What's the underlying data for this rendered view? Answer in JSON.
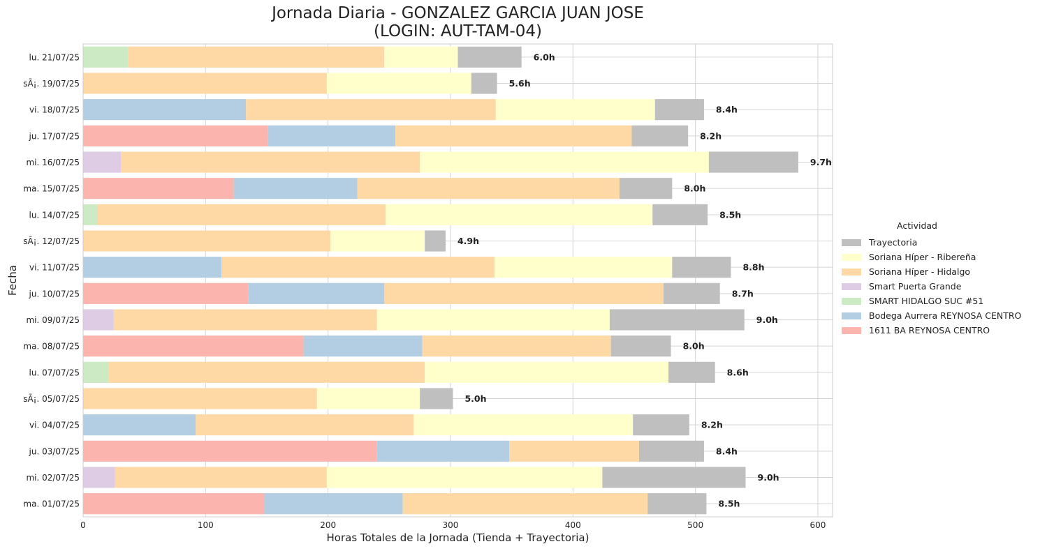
{
  "chart_data": {
    "type": "bar",
    "orientation": "horizontal",
    "stacked": true,
    "title_line1": "Jornada Diaria - GONZALEZ GARCIA JUAN JOSE",
    "title_line2": "(LOGIN: AUT-TAM-04)",
    "xlabel": "Horas Totales de la Jornada (Tienda + Trayectoria)",
    "ylabel": "Fecha",
    "xlim": [
      0,
      612
    ],
    "xticks": [
      0,
      100,
      200,
      300,
      400,
      500,
      600
    ],
    "grid": true,
    "legend_title": "Actividad",
    "legend_position": "right",
    "categories": [
      "ma. 01/07/25",
      "mi. 02/07/25",
      "ju. 03/07/25",
      "vi. 04/07/25",
      "sÃ¡. 05/07/25",
      "lu. 07/07/25",
      "ma. 08/07/25",
      "mi. 09/07/25",
      "ju. 10/07/25",
      "vi. 11/07/25",
      "sÃ¡. 12/07/25",
      "lu. 14/07/25",
      "ma. 15/07/25",
      "mi. 16/07/25",
      "ju. 17/07/25",
      "vi. 18/07/25",
      "sÃ¡. 19/07/25",
      "lu. 21/07/25"
    ],
    "series": [
      {
        "name": "1611 BA REYNOSA CENTRO",
        "color": "#fbb4ae",
        "values": [
          148,
          0,
          240,
          0,
          0,
          0,
          180,
          0,
          135,
          0,
          0,
          0,
          123,
          0,
          151,
          0,
          0,
          0
        ]
      },
      {
        "name": "Bodega Aurrera REYNOSA CENTRO",
        "color": "#b3cde3",
        "values": [
          113,
          0,
          108,
          92,
          0,
          0,
          97,
          0,
          111,
          113,
          0,
          0,
          101,
          0,
          104,
          133,
          0,
          0
        ]
      },
      {
        "name": "SMART HIDALGO SUC #51",
        "color": "#ccebc5",
        "values": [
          0,
          0,
          0,
          0,
          0,
          21,
          0,
          0,
          0,
          0,
          0,
          12,
          0,
          0,
          0,
          0,
          0,
          37
        ]
      },
      {
        "name": "Smart Puerta Grande",
        "color": "#decbe4",
        "values": [
          0,
          26,
          0,
          0,
          0,
          0,
          0,
          25,
          0,
          0,
          0,
          0,
          0,
          31,
          0,
          0,
          0,
          0
        ]
      },
      {
        "name": "Soriana Híper - Hidalgo",
        "color": "#fed9a6",
        "values": [
          200,
          173,
          106,
          178,
          191,
          258,
          154,
          215,
          228,
          223,
          202,
          235,
          214,
          244,
          193,
          204,
          199,
          209
        ]
      },
      {
        "name": "Soriana Híper - Ribereña",
        "color": "#ffffcc",
        "values": [
          0,
          225,
          0,
          179,
          84,
          199,
          0,
          190,
          0,
          145,
          77,
          218,
          0,
          236,
          0,
          130,
          118,
          60
        ]
      },
      {
        "name": "Trayectoria",
        "color": "#bfbfbf",
        "values": [
          48,
          117,
          53,
          46,
          27,
          38,
          49,
          110,
          46,
          48,
          17,
          45,
          43,
          73,
          46,
          40,
          21,
          52
        ]
      }
    ],
    "legend_order": [
      "Trayectoria",
      "Soriana Híper - Ribereña",
      "Soriana Híper - Hidalgo",
      "Smart Puerta Grande",
      "SMART HIDALGO SUC #51",
      "Bodega Aurrera REYNOSA CENTRO",
      "1611 BA REYNOSA CENTRO"
    ],
    "total_labels": [
      "8.5h",
      "9.0h",
      "8.4h",
      "8.2h",
      "5.0h",
      "8.6h",
      "8.0h",
      "9.0h",
      "8.7h",
      "8.8h",
      "4.9h",
      "8.5h",
      "8.0h",
      "9.7h",
      "8.2h",
      "8.4h",
      "5.6h",
      "6.0h"
    ]
  }
}
